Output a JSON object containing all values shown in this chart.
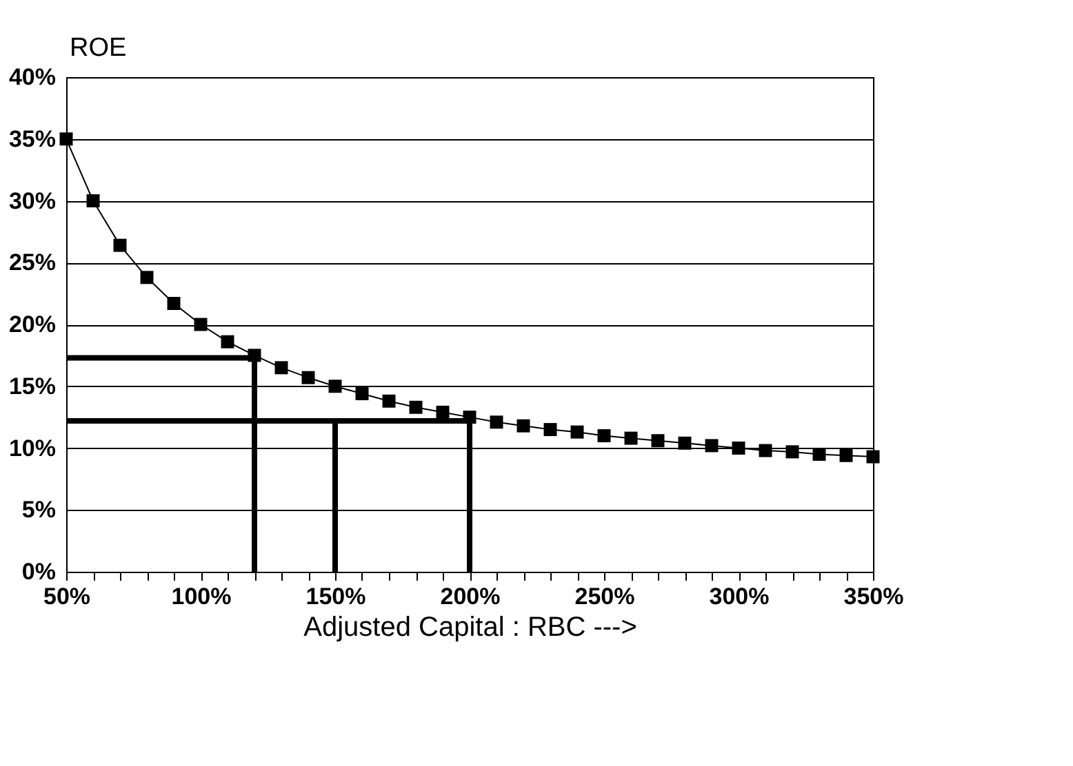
{
  "chart_data": {
    "type": "line",
    "xlabel": "Adjusted Capital : RBC --->",
    "ylabel": "ROE",
    "xlim": [
      50,
      350
    ],
    "ylim": [
      0,
      40
    ],
    "xticks": [
      {
        "value": 50,
        "label": "50%"
      },
      {
        "value": 60,
        "label": null
      },
      {
        "value": 70,
        "label": null
      },
      {
        "value": 80,
        "label": null
      },
      {
        "value": 90,
        "label": null
      },
      {
        "value": 100,
        "label": "100%"
      },
      {
        "value": 110,
        "label": null
      },
      {
        "value": 120,
        "label": null
      },
      {
        "value": 130,
        "label": null
      },
      {
        "value": 140,
        "label": null
      },
      {
        "value": 150,
        "label": "150%"
      },
      {
        "value": 160,
        "label": null
      },
      {
        "value": 170,
        "label": null
      },
      {
        "value": 180,
        "label": null
      },
      {
        "value": 190,
        "label": null
      },
      {
        "value": 200,
        "label": "200%"
      },
      {
        "value": 210,
        "label": null
      },
      {
        "value": 220,
        "label": null
      },
      {
        "value": 230,
        "label": null
      },
      {
        "value": 240,
        "label": null
      },
      {
        "value": 250,
        "label": "250%"
      },
      {
        "value": 260,
        "label": null
      },
      {
        "value": 270,
        "label": null
      },
      {
        "value": 280,
        "label": null
      },
      {
        "value": 290,
        "label": null
      },
      {
        "value": 300,
        "label": "300%"
      },
      {
        "value": 310,
        "label": null
      },
      {
        "value": 320,
        "label": null
      },
      {
        "value": 330,
        "label": null
      },
      {
        "value": 340,
        "label": null
      },
      {
        "value": 350,
        "label": "350%"
      }
    ],
    "yticks": [
      {
        "value": 0,
        "label": "0%"
      },
      {
        "value": 5,
        "label": "5%"
      },
      {
        "value": 10,
        "label": "10%"
      },
      {
        "value": 15,
        "label": "15%"
      },
      {
        "value": 20,
        "label": "20%"
      },
      {
        "value": 25,
        "label": "25%"
      },
      {
        "value": 30,
        "label": "30%"
      },
      {
        "value": 35,
        "label": "35%"
      },
      {
        "value": 40,
        "label": "40%"
      }
    ],
    "grid": "y",
    "series": [
      {
        "color": "#000000",
        "marker": "square",
        "x": [
          50,
          60,
          70,
          80,
          90,
          100,
          110,
          120,
          130,
          140,
          150,
          160,
          170,
          180,
          190,
          200,
          210,
          220,
          230,
          240,
          250,
          260,
          270,
          280,
          290,
          300,
          310,
          320,
          330,
          340,
          350
        ],
        "values": [
          35,
          30,
          26.4,
          23.8,
          21.7,
          20,
          18.6,
          17.5,
          16.5,
          15.7,
          15,
          14.4,
          13.8,
          13.3,
          12.9,
          12.5,
          12.1,
          11.8,
          11.5,
          11.3,
          11,
          10.8,
          10.6,
          10.4,
          10.2,
          10,
          9.8,
          9.7,
          9.5,
          9.4,
          9.3
        ]
      },
      {
        "color": "#000000",
        "marker": "none",
        "x": [
          50,
          120,
          120
        ],
        "values": [
          17.3,
          17.3,
          0
        ]
      },
      {
        "color": "#000000",
        "marker": "none",
        "x": [
          50,
          200,
          200
        ],
        "values": [
          12.2,
          12.2,
          0
        ]
      },
      {
        "color": "#000000",
        "marker": "none",
        "x": [
          150,
          150
        ],
        "values": [
          12.2,
          0
        ]
      }
    ]
  }
}
